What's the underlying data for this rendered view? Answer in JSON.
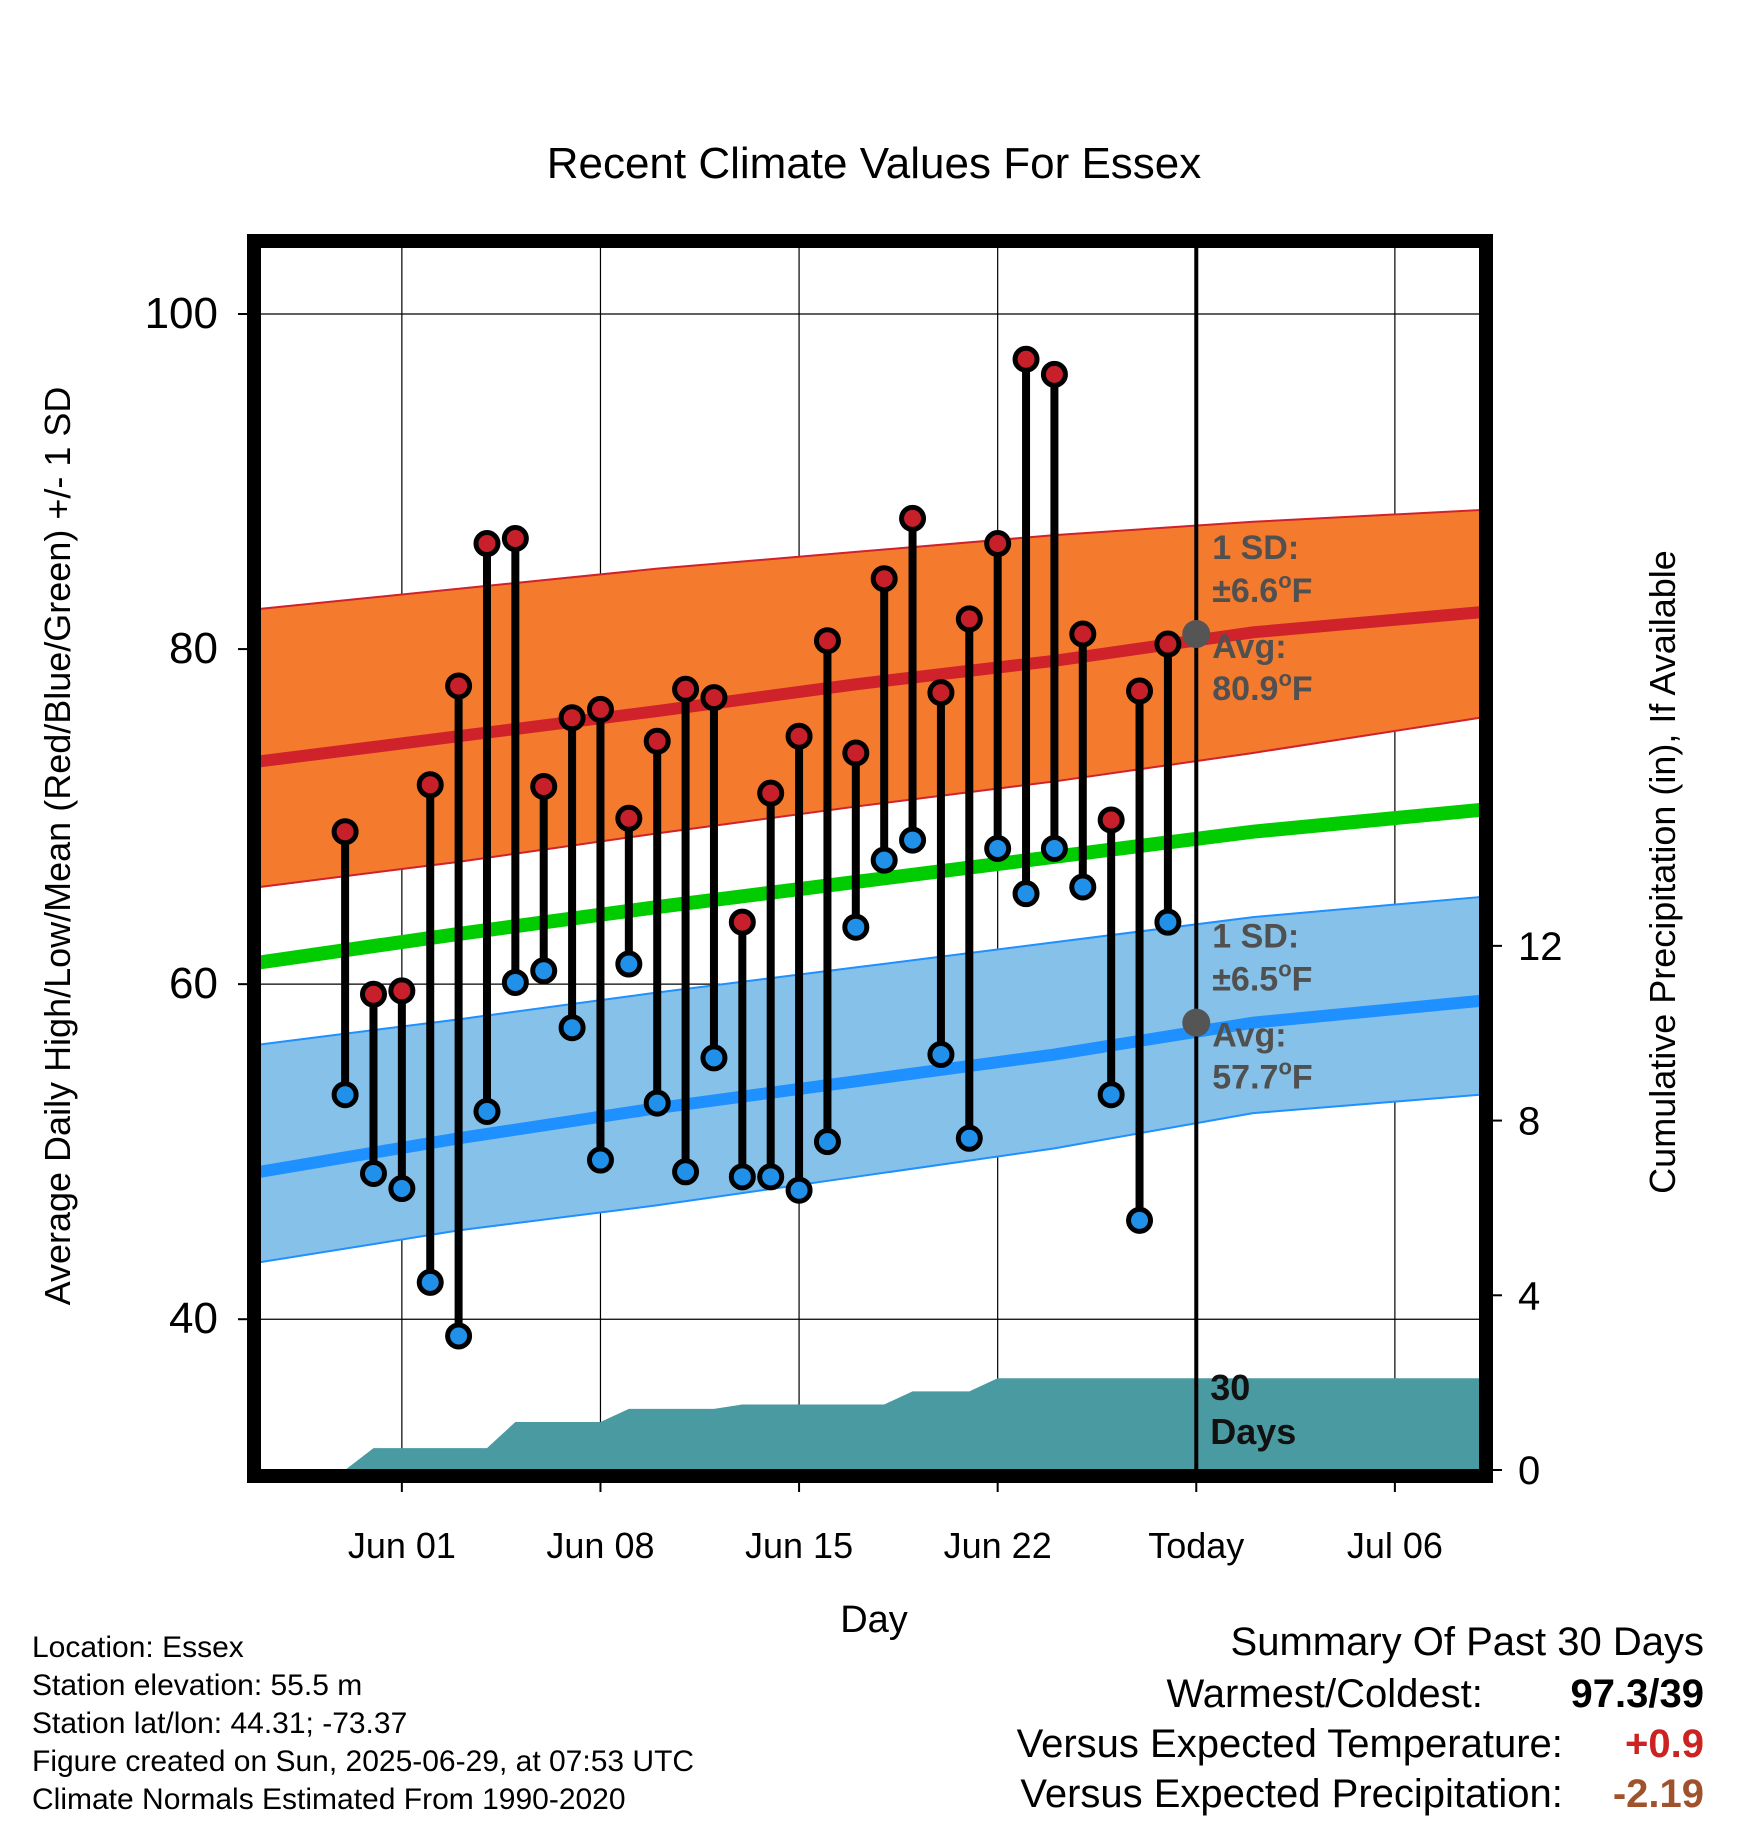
{
  "chart_data": {
    "type": "line",
    "title": "Recent Climate Values For Essex",
    "xlabel": "Day",
    "ylabel": "Average Daily High/Low/Mean (Red/Blue/Green) +/- 1 SD",
    "y2label": "Cumulative Precipitation (in), If Available",
    "ylim": [
      31,
      104
    ],
    "y2lim": [
      0,
      28
    ],
    "xlim": [
      "2025-05-27",
      "2025-07-09"
    ],
    "x_ticks": [
      {
        "date": "2025-06-01",
        "label": "Jun 01"
      },
      {
        "date": "2025-06-08",
        "label": "Jun 08"
      },
      {
        "date": "2025-06-15",
        "label": "Jun 15"
      },
      {
        "date": "2025-06-22",
        "label": "Jun 22"
      },
      {
        "date": "2025-06-29",
        "label": "Today"
      },
      {
        "date": "2025-07-06",
        "label": "Jul 06"
      }
    ],
    "y_ticks": [
      40,
      60,
      80,
      100
    ],
    "y2_ticks": [
      0,
      4,
      8,
      12
    ],
    "grid": true,
    "today": "2025-06-29",
    "normals": {
      "dates": [
        "2025-05-27",
        "2025-06-03",
        "2025-06-10",
        "2025-06-17",
        "2025-06-24",
        "2025-07-01",
        "2025-07-09"
      ],
      "high_mean": [
        73.3,
        74.8,
        76.3,
        77.9,
        79.3,
        81.0,
        82.2
      ],
      "high_upper": [
        82.4,
        83.6,
        84.8,
        85.8,
        86.8,
        87.6,
        88.3
      ],
      "high_lower": [
        65.8,
        67.3,
        69.0,
        70.6,
        72.1,
        73.8,
        75.9
      ],
      "mean": [
        61.3,
        63.0,
        64.6,
        66.1,
        67.6,
        69.1,
        70.4
      ],
      "low_mean": [
        48.8,
        50.8,
        52.6,
        54.2,
        55.8,
        57.7,
        59.0
      ],
      "low_upper": [
        56.4,
        57.9,
        59.5,
        61.0,
        62.5,
        64.0,
        65.2
      ],
      "low_lower": [
        43.4,
        45.3,
        46.8,
        48.5,
        50.2,
        52.3,
        53.4
      ]
    },
    "daily": {
      "dates": [
        "2025-05-30",
        "2025-05-31",
        "2025-06-01",
        "2025-06-02",
        "2025-06-03",
        "2025-06-04",
        "2025-06-05",
        "2025-06-06",
        "2025-06-07",
        "2025-06-08",
        "2025-06-09",
        "2025-06-10",
        "2025-06-11",
        "2025-06-12",
        "2025-06-13",
        "2025-06-14",
        "2025-06-15",
        "2025-06-16",
        "2025-06-17",
        "2025-06-18",
        "2025-06-19",
        "2025-06-20",
        "2025-06-21",
        "2025-06-22",
        "2025-06-23",
        "2025-06-24",
        "2025-06-25",
        "2025-06-26",
        "2025-06-27",
        "2025-06-28"
      ],
      "high": [
        69.1,
        59.4,
        59.6,
        71.9,
        77.8,
        86.3,
        86.6,
        71.8,
        75.9,
        76.4,
        69.9,
        74.5,
        77.6,
        77.1,
        63.7,
        71.4,
        74.8,
        80.5,
        73.8,
        84.2,
        87.8,
        77.4,
        81.8,
        86.3,
        97.3,
        96.4,
        80.9,
        69.8,
        77.5,
        80.3
      ],
      "low": [
        53.4,
        48.7,
        47.8,
        42.2,
        39.0,
        52.4,
        60.1,
        60.8,
        57.4,
        49.5,
        61.2,
        52.9,
        48.8,
        55.6,
        48.5,
        48.5,
        47.7,
        50.6,
        63.4,
        67.4,
        68.6,
        55.8,
        50.8,
        68.1,
        65.4,
        68.1,
        65.8,
        53.4,
        45.9,
        63.7
      ]
    },
    "precip_cumulative": {
      "dates": [
        "2025-05-30",
        "2025-05-31",
        "2025-06-04",
        "2025-06-05",
        "2025-06-08",
        "2025-06-09",
        "2025-06-12",
        "2025-06-13",
        "2025-06-18",
        "2025-06-19",
        "2025-06-21",
        "2025-06-22",
        "2025-06-29",
        "2025-07-09"
      ],
      "values": [
        0.0,
        0.5,
        0.5,
        1.1,
        1.1,
        1.4,
        1.4,
        1.5,
        1.5,
        1.8,
        1.8,
        2.1,
        2.1,
        2.1
      ]
    },
    "annotations": {
      "high_sd": "±6.6",
      "high_avg": "80.9",
      "low_sd": "±6.5",
      "low_avg": "57.7",
      "sd_label": "1 SD:",
      "avg_label": "Avg:",
      "unit_deg": "o",
      "unit_f": "F",
      "precip_label_1": "30",
      "precip_label_2": "Days"
    },
    "colors": {
      "high_band": "#f47a2e",
      "high_line": "#d0222a",
      "low_band": "#85c1e8",
      "low_line": "#1e90ff",
      "mean_line": "#00cc00",
      "precip": "#4a9aa2",
      "high_dot": "#c8202a",
      "low_dot": "#2090e8"
    }
  },
  "info": {
    "location": "Location: Essex",
    "elevation": "Station elevation: 55.5 m",
    "latlon": "Station lat/lon: 44.31; -73.37",
    "created": "Figure created on Sun, 2025-06-29, at 07:53 UTC",
    "normals": "Climate Normals Estimated From 1990-2020"
  },
  "summary": {
    "title": "Summary Of Past 30 Days",
    "warm_cold_label": "Warmest/Coldest:",
    "warm_cold_value": "97.3/39",
    "temp_label": "Versus Expected Temperature:",
    "temp_value": "+0.9",
    "temp_color": "#cc2222",
    "precip_label": "Versus Expected Precipitation:",
    "precip_value": "-2.19",
    "precip_color": "#a0522d"
  }
}
